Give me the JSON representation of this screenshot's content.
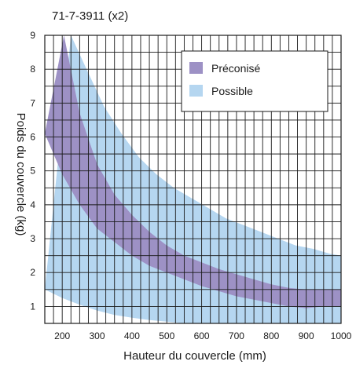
{
  "chart_data": {
    "type": "area",
    "title": "71-7-3911 (x2)",
    "xlabel": "Hauteur du couvercle (mm)",
    "ylabel": "Poids du couvercle (kg)",
    "xlim": [
      150,
      1000
    ],
    "ylim": [
      0.5,
      9
    ],
    "x_ticks": [
      200,
      300,
      400,
      500,
      600,
      700,
      800,
      900,
      1000
    ],
    "y_ticks": [
      1,
      2,
      3,
      4,
      5,
      6,
      7,
      8,
      9
    ],
    "grid": true,
    "grid_x_step_mm": 25,
    "grid_y_step_kg": 0.5,
    "legend_position": "top-right",
    "colors": {
      "preconise": "#9d91c5",
      "possible": "#b5d6f0",
      "grid": "#1a1a1a"
    },
    "series": [
      {
        "name": "Possible",
        "color_key": "possible",
        "upper": {
          "x": [
            225,
            270,
            320,
            370,
            420,
            470,
            520,
            570,
            620,
            670,
            720,
            770,
            820,
            870,
            920,
            970,
            1000
          ],
          "y": [
            9.0,
            8.0,
            6.9,
            6.1,
            5.4,
            4.9,
            4.5,
            4.2,
            3.9,
            3.6,
            3.4,
            3.2,
            3.0,
            2.8,
            2.7,
            2.55,
            2.5
          ]
        },
        "lower": {
          "x": [
            150,
            200,
            250,
            300,
            350,
            400,
            450,
            500,
            550,
            600,
            650,
            700,
            750,
            800,
            850,
            900,
            950,
            1000
          ],
          "y": [
            1.5,
            1.25,
            1.05,
            0.88,
            0.75,
            0.67,
            0.6,
            0.55,
            0.5,
            0.5,
            0.5,
            0.5,
            0.5,
            0.5,
            0.5,
            0.5,
            0.5,
            0.5
          ]
        }
      },
      {
        "name": "Préconisé",
        "color_key": "preconise",
        "upper": {
          "x": [
            205,
            250,
            300,
            350,
            400,
            450,
            500,
            550,
            600,
            650,
            700,
            750,
            800,
            850,
            900,
            950,
            1000
          ],
          "y": [
            9.0,
            6.7,
            5.2,
            4.3,
            3.7,
            3.2,
            2.8,
            2.5,
            2.3,
            2.1,
            1.95,
            1.8,
            1.65,
            1.55,
            1.5,
            1.5,
            1.5
          ]
        },
        "lower": {
          "x": [
            150,
            200,
            250,
            300,
            350,
            400,
            450,
            500,
            550,
            600,
            650,
            700,
            750,
            800,
            850,
            900,
            950,
            1000
          ],
          "y": [
            6.1,
            4.9,
            4.0,
            3.3,
            2.9,
            2.5,
            2.2,
            2.0,
            1.8,
            1.6,
            1.45,
            1.3,
            1.2,
            1.1,
            1.0,
            0.95,
            1.0,
            1.0
          ]
        }
      }
    ]
  }
}
